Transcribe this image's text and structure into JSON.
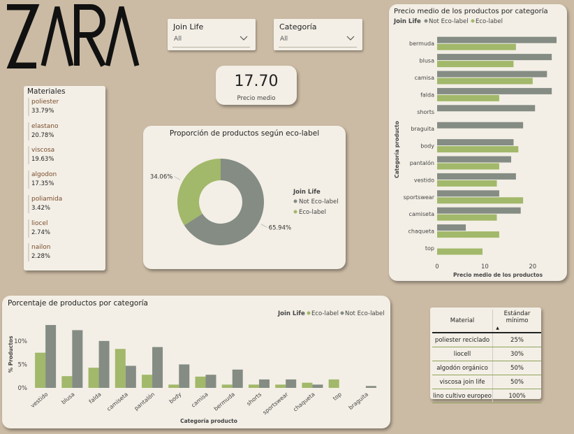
{
  "brand": {
    "logo_text": "ZARA"
  },
  "filters": [
    {
      "label": "Join Life",
      "value": "All"
    },
    {
      "label": "Categoría",
      "value": "All"
    }
  ],
  "kpi": {
    "value": "17.70",
    "label": "Precio medio"
  },
  "materials": {
    "title": "Materiales",
    "items": [
      {
        "name": "poliester",
        "pct": "33.79%"
      },
      {
        "name": "elastano",
        "pct": "20.78%"
      },
      {
        "name": "viscosa",
        "pct": "19.63%"
      },
      {
        "name": "algodon",
        "pct": "17.35%"
      },
      {
        "name": "poliamida",
        "pct": "3.42%"
      },
      {
        "name": "liocel",
        "pct": "2.74%"
      },
      {
        "name": "nailon",
        "pct": "2.28%"
      }
    ]
  },
  "colors": {
    "not_eco": "#848c84",
    "eco": "#a2b86a",
    "card": "#f3efe6",
    "background": "#cbbba4"
  },
  "chart_data": [
    {
      "type": "pie",
      "title": "Proporción de productos según eco-label",
      "legend_title": "Join Life",
      "legend_position": "right",
      "slices": [
        {
          "name": "Not Eco-label",
          "value": 65.94,
          "label": "65.94%"
        },
        {
          "name": "Eco-label",
          "value": 34.06,
          "label": "34.06%"
        }
      ]
    },
    {
      "type": "bar",
      "orientation": "horizontal",
      "title": "Precio medio de los productos por categoría",
      "legend_title": "Join Life",
      "legend_position": "top-left",
      "xlabel": "Precio medio de los productos",
      "ylabel": "Categoría producto",
      "xlim": [
        0,
        25
      ],
      "xticks": [
        0,
        10,
        20
      ],
      "grid": false,
      "categories": [
        "bermuda",
        "blusa",
        "camisa",
        "falda",
        "shorts",
        "braguita",
        "body",
        "pantalón",
        "vestido",
        "sportswear",
        "camiseta",
        "chaqueta",
        "top"
      ],
      "series": [
        {
          "name": "Not Eco-label",
          "values": [
            25,
            24,
            23,
            24,
            20.5,
            18,
            16,
            15.5,
            16.5,
            13,
            17.5,
            6,
            null
          ]
        },
        {
          "name": "Eco-label",
          "values": [
            16.5,
            16,
            20,
            13,
            null,
            null,
            17,
            13,
            12.5,
            18,
            12.5,
            13,
            9.5
          ]
        }
      ]
    },
    {
      "type": "bar",
      "orientation": "vertical",
      "title": "Porcentaje de productos por categoría",
      "legend_title": "Join Life",
      "legend_position": "top-right",
      "xlabel": "Categoría producto",
      "ylabel": "% Productos",
      "ylim": [
        0,
        14
      ],
      "yticks": [
        0,
        5,
        10
      ],
      "ytick_labels": [
        "0%",
        "5%",
        "10%"
      ],
      "grid": false,
      "categories": [
        "vestido",
        "blusa",
        "falda",
        "camiseta",
        "pantalón",
        "body",
        "camisa",
        "bermuda",
        "shorts",
        "sportswear",
        "chaqueta",
        "top",
        "braguita"
      ],
      "series": [
        {
          "name": "Eco-label",
          "values": [
            7.5,
            2.5,
            4.3,
            8.3,
            2.8,
            0.7,
            2.4,
            0.7,
            0.7,
            0.7,
            1.1,
            1.8,
            null
          ]
        },
        {
          "name": "Not Eco-label",
          "values": [
            13.4,
            12.3,
            10.0,
            4.7,
            8.7,
            5.0,
            2.8,
            3.9,
            1.8,
            1.8,
            0.7,
            null,
            0.4
          ]
        }
      ]
    },
    {
      "type": "table",
      "columns": [
        "Material",
        "Estándar mínimo"
      ],
      "sort_indicator": "▲",
      "rows": [
        [
          "poliester reciclado",
          "25%"
        ],
        [
          "liocell",
          "30%"
        ],
        [
          "algodón orgánico",
          "50%"
        ],
        [
          "viscosa join life",
          "50%"
        ],
        [
          "lino cultivo europeo",
          "100%"
        ]
      ]
    }
  ]
}
